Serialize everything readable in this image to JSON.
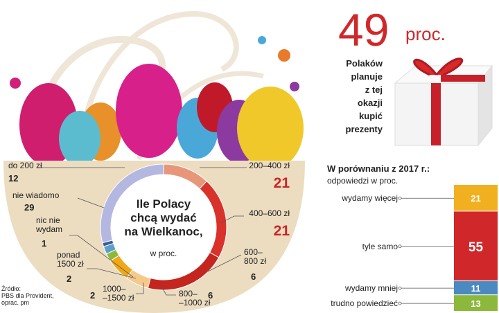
{
  "headline": {
    "number": "49",
    "unit": "proc.",
    "text": "Polaków\nplanuje\nz tej\nokazji\nkupić\nprezenty"
  },
  "source": "Źródło:\nPBS dla Provident,\noprac. pm",
  "chart_data": [
    {
      "type": "donut",
      "title": "Ile Polacy\nchcą wydać\nna Wielkanoc,",
      "subtitle": "w proc.",
      "categories": [
        "do 200 zł",
        "200–400 zł",
        "400–600 zł",
        "600–\n800 zł",
        "800–\n–1000 zł",
        "1000–\n–1500 zł",
        "ponad\n1500 zł",
        "nic nie\nwydam",
        "nie wiadomo"
      ],
      "values": [
        12,
        21,
        21,
        6,
        6,
        2,
        2,
        1,
        29
      ],
      "colors": [
        "#e8967a",
        "#d8322a",
        "#c4261f",
        "#f5c98a",
        "#f0a818",
        "#8cb83c",
        "#5aa0c8",
        "#3c5aa0",
        "#b4b8e0"
      ]
    },
    {
      "type": "stacked_bar",
      "title": "W porównaniu z 2017 r.:",
      "subtitle": "odpowiedzi w proc.",
      "categories": [
        "wydamy więcej",
        "tyle samo",
        "wydamy mniej",
        "trudno powiedzieć"
      ],
      "values": [
        21,
        55,
        11,
        13
      ],
      "colors": [
        "#f0b020",
        "#d0282a",
        "#4a8ac0",
        "#8cb83c"
      ]
    }
  ]
}
